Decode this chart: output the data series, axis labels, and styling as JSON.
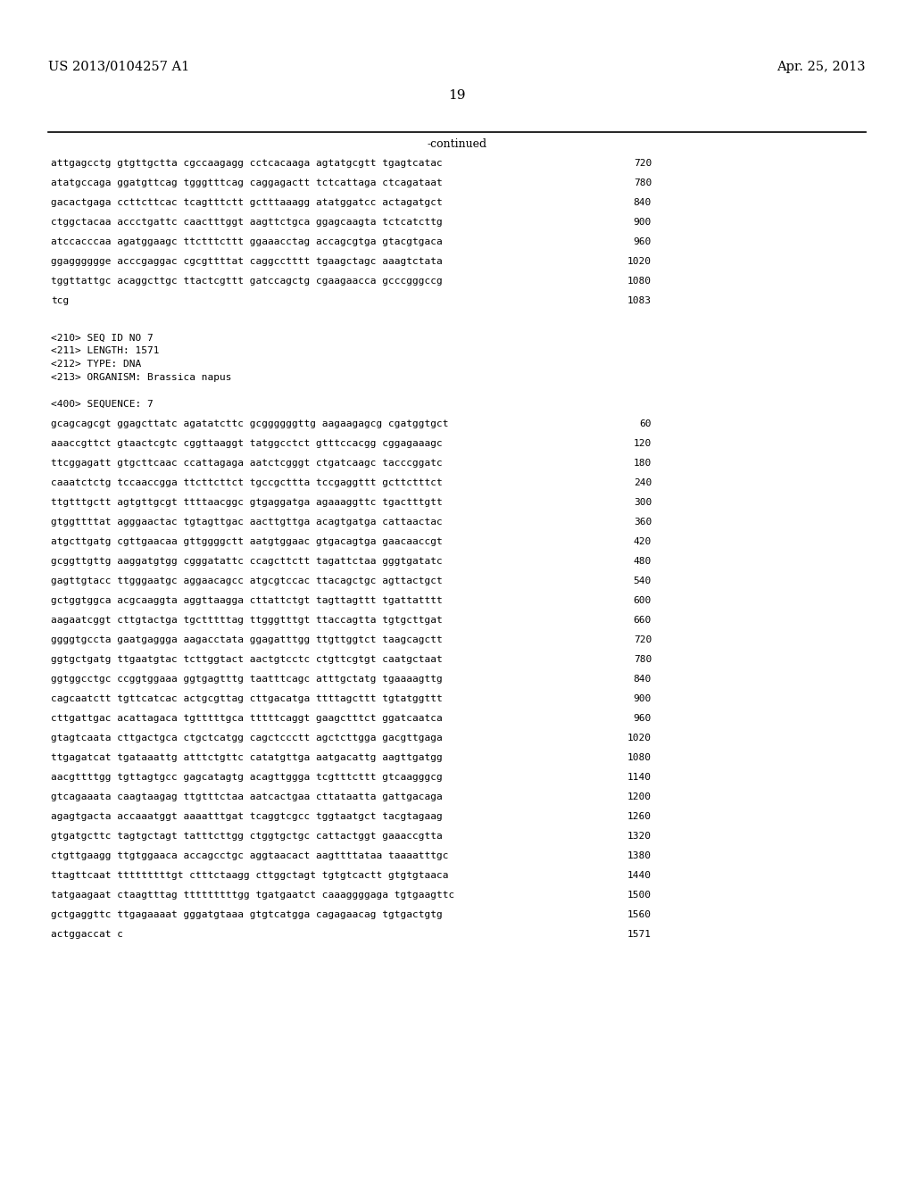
{
  "header_left": "US 2013/0104257 A1",
  "header_right": "Apr. 25, 2013",
  "page_number": "19",
  "continued_label": "-continued",
  "background_color": "#ffffff",
  "text_color": "#000000",
  "lines_top": [
    {
      "text": "attgagcctg gtgttgctta cgccaagagg cctcacaaga agtatgcgtt tgagtcatac",
      "num": "720"
    },
    {
      "text": "atatgccaga ggatgttcag tgggtttcag caggagactt tctcattaga ctcagataat",
      "num": "780"
    },
    {
      "text": "gacactgaga ccttcttcac tcagtttctt gctttaaagg atatggatcc actagatgct",
      "num": "840"
    },
    {
      "text": "ctggctacaa accctgattc caactttggt aagttctgca ggagcaagta tctcatcttg",
      "num": "900"
    },
    {
      "text": "atccacccaa agatggaagc ttctttcttt ggaaacctag accagcgtga gtacgtgaca",
      "num": "960"
    },
    {
      "text": "ggagggggge acccgaggac cgcgttttat caggcctttt tgaagctagc aaagtctata",
      "num": "1020"
    },
    {
      "text": "tggttattgc acaggcttgc ttactcgttt gatccagctg cgaagaacca gcccgggccg",
      "num": "1080"
    },
    {
      "text": "tcg",
      "num": "1083"
    }
  ],
  "meta_lines": [
    "<210> SEQ ID NO 7",
    "<211> LENGTH: 1571",
    "<212> TYPE: DNA",
    "<213> ORGANISM: Brassica napus"
  ],
  "seq_label": "<400> SEQUENCE: 7",
  "lines_seq": [
    {
      "text": "gcagcagcgt ggagcttatc agatatcttc gcggggggttg aagaagagcg cgatggtgct",
      "num": "60"
    },
    {
      "text": "aaaccgttct gtaactcgtc cggttaaggt tatggcctct gtttccacgg cggagaaagc",
      "num": "120"
    },
    {
      "text": "ttcggagatt gtgcttcaac ccattagaga aatctcgggt ctgatcaagc tacccggatc",
      "num": "180"
    },
    {
      "text": "caaatctctg tccaaccgga ttcttcttct tgccgcttta tccgaggttt gcttctttct",
      "num": "240"
    },
    {
      "text": "ttgtttgctt agtgttgcgt ttttaacggc gtgaggatga agaaaggttc tgactttgtt",
      "num": "300"
    },
    {
      "text": "gtggttttat agggaactac tgtagttgac aacttgttga acagtgatga cattaactac",
      "num": "360"
    },
    {
      "text": "atgcttgatg cgttgaacaa gttggggctt aatgtggaac gtgacagtga gaacaaccgt",
      "num": "420"
    },
    {
      "text": "gcggttgttg aaggatgtgg cgggatattc ccagcttctt tagattctaa gggtgatatc",
      "num": "480"
    },
    {
      "text": "gagttgtacc ttgggaatgc aggaacagcc atgcgtccac ttacagctgc agttactgct",
      "num": "540"
    },
    {
      "text": "gctggtggca acgcaaggta aggttaagga cttattctgt tagttagttt tgattatttt",
      "num": "600"
    },
    {
      "text": "aagaatcggt cttgtactga tgctttttag ttgggtttgt ttaccagtta tgtgcttgat",
      "num": "660"
    },
    {
      "text": "ggggtgccta gaatgaggga aagacctata ggagatttgg ttgttggtct taagcagctt",
      "num": "720"
    },
    {
      "text": "ggtgctgatg ttgaatgtac tcttggtact aactgtcctc ctgttcgtgt caatgctaat",
      "num": "780"
    },
    {
      "text": "ggtggcctgc ccggtggaaa ggtgagtttg taatttcagc atttgctatg tgaaaagttg",
      "num": "840"
    },
    {
      "text": "cagcaatctt tgttcatcac actgcgttag cttgacatga ttttagcttt tgtatggttt",
      "num": "900"
    },
    {
      "text": "cttgattgac acattagaca tgtttttgca tttttcaggt gaagctttct ggatcaatca",
      "num": "960"
    },
    {
      "text": "gtagtcaata cttgactgca ctgctcatgg cagctccctt agctcttgga gacgttgaga",
      "num": "1020"
    },
    {
      "text": "ttgagatcat tgataaattg atttctgttc catatgttga aatgacattg aagttgatgg",
      "num": "1080"
    },
    {
      "text": "aacgttttgg tgttagtgcc gagcatagtg acagttggga tcgtttcttt gtcaagggcg",
      "num": "1140"
    },
    {
      "text": "gtcagaaata caagtaagag ttgtttctaa aatcactgaa cttataatta gattgacaga",
      "num": "1200"
    },
    {
      "text": "agagtgacta accaaatggt aaaatttgat tcaggtcgcc tggtaatgct tacgtagaag",
      "num": "1260"
    },
    {
      "text": "gtgatgcttc tagtgctagt tatttcttgg ctggtgctgc cattactggt gaaaccgtta",
      "num": "1320"
    },
    {
      "text": "ctgttgaagg ttgtggaaca accagcctgc aggtaacact aagttttataa taaaatttgc",
      "num": "1380"
    },
    {
      "text": "ttagttcaat tttttttttgt ctttctaagg cttggctagt tgtgtcactt gtgtgtaaca",
      "num": "1440"
    },
    {
      "text": "tatgaagaat ctaagtttag tttttttttgg tgatgaatct caaaggggaga tgtgaagttc",
      "num": "1500"
    },
    {
      "text": "gctgaggttc ttgagaaaat gggatgtaaa gtgtcatgga cagagaacag tgtgactgtg",
      "num": "1560"
    },
    {
      "text": "actggaccat c",
      "num": "1571"
    }
  ]
}
